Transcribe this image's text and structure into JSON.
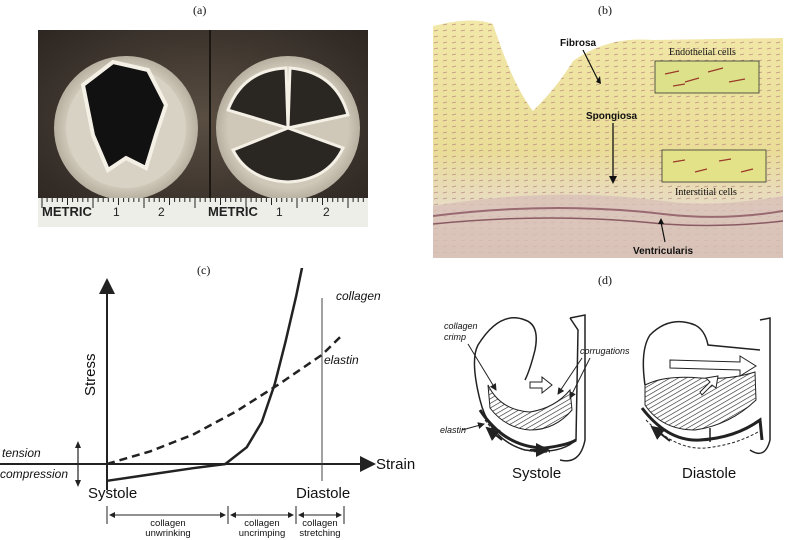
{
  "figure": {
    "panel_labels": [
      "(a)",
      "(b)",
      "(c)",
      "(d)"
    ]
  },
  "panel_a": {
    "ruler_text_left": "METRIC",
    "ruler_marks_left": [
      "1",
      "2"
    ],
    "ruler_text_right": "METRIC",
    "ruler_marks_right": [
      "1",
      "2"
    ]
  },
  "panel_b": {
    "labels": {
      "fibrosa": "Fibrosa",
      "spongiosa": "Spongiosa",
      "ventricularis": "Ventricularis",
      "endothelial": "Endothelial cells",
      "interstitial": "Interstitial cells"
    }
  },
  "chart_data": {
    "type": "line",
    "title": "",
    "xlabel": "Strain",
    "ylabel": "Stress",
    "y_regions": [
      "tension",
      "compression"
    ],
    "x_markers": [
      "Systole",
      "Diastole"
    ],
    "series": [
      {
        "name": "collagen",
        "style": "solid",
        "x": [
          0,
          0.2,
          0.4,
          0.55,
          0.65,
          0.72,
          0.78,
          0.83,
          0.88,
          0.93,
          0.97
        ],
        "y": [
          -0.08,
          -0.05,
          -0.02,
          0.0,
          0.08,
          0.2,
          0.38,
          0.58,
          0.8,
          1.05,
          1.3
        ]
      },
      {
        "name": "elastin",
        "style": "dashed",
        "x": [
          0,
          0.2,
          0.4,
          0.6,
          0.8,
          1.0,
          1.1
        ],
        "y": [
          0.0,
          0.06,
          0.14,
          0.25,
          0.38,
          0.52,
          0.62
        ]
      }
    ],
    "phases": [
      "collagen unwrinking",
      "collagen uncrimping",
      "collagen stretching"
    ]
  },
  "panel_d": {
    "labels": {
      "crimp": "collagen crimp",
      "corrugations": "corrugations",
      "elastin": "elastin"
    },
    "captions": [
      "Systole",
      "Diastole"
    ]
  }
}
